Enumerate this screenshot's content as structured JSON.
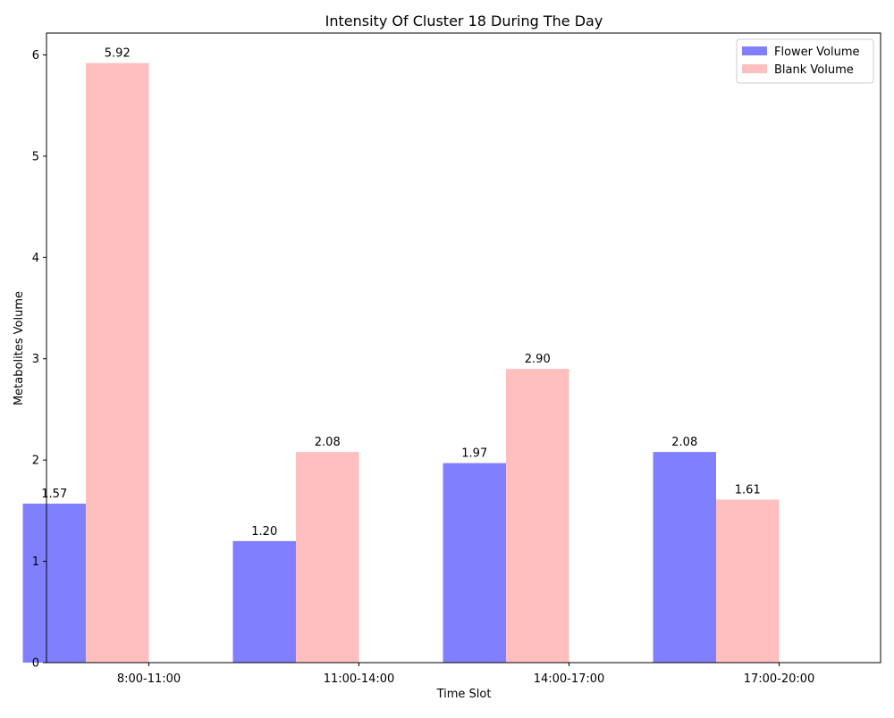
{
  "chart_data": {
    "type": "bar",
    "title": "Intensity Of Cluster 18 During The Day",
    "xlabel": "Time Slot",
    "ylabel": "Metabolites Volume",
    "categories": [
      "8:00-11:00",
      "11:00-14:00",
      "14:00-17:00",
      "17:00-20:00"
    ],
    "series": [
      {
        "name": "Flower Volume",
        "color": "#8080ff",
        "values": [
          1.57,
          1.2,
          1.97,
          2.08
        ],
        "labels": [
          "1.57",
          "1.20",
          "1.97",
          "2.08"
        ]
      },
      {
        "name": "Blank Volume",
        "color": "#ffbfbf",
        "values": [
          5.92,
          2.08,
          2.9,
          1.61
        ],
        "labels": [
          "5.92",
          "2.08",
          "2.90",
          "1.61"
        ]
      }
    ],
    "ylim": [
      0,
      6.216
    ],
    "yticks": [
      0,
      1,
      2,
      3,
      4,
      5,
      6
    ],
    "grid": false,
    "legend_position": "top-right"
  }
}
